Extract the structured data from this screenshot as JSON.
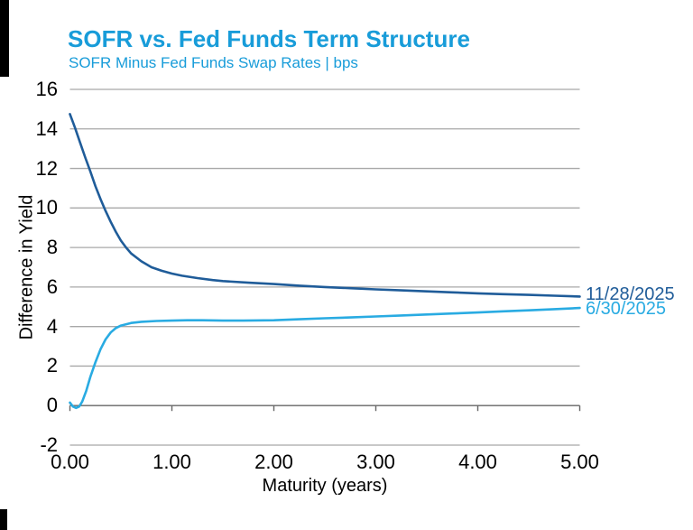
{
  "page": {
    "title": "SOFR vs. Fed Funds Term Structure",
    "subtitle": "SOFR Minus Fed Funds Swap Rates | bps",
    "title_color": "#189CD9"
  },
  "chart_data": {
    "type": "line",
    "title": "SOFR vs. Fed Funds Term Structure",
    "subtitle": "SOFR Minus Fed Funds Swap Rates | bps",
    "xlabel": "Maturity (years)",
    "ylabel": "Difference in Yield",
    "xlim": [
      0,
      5
    ],
    "ylim": [
      -2,
      16
    ],
    "x_ticks": [
      "0.00",
      "1.00",
      "2.00",
      "3.00",
      "4.00",
      "5.00"
    ],
    "x_tick_values": [
      0,
      1,
      2,
      3,
      4,
      5
    ],
    "y_ticks": [
      "16",
      "14",
      "12",
      "10",
      "8",
      "6",
      "4",
      "2",
      "0",
      "-2"
    ],
    "y_tick_values": [
      16,
      14,
      12,
      10,
      8,
      6,
      4,
      2,
      0,
      -2
    ],
    "grid": "horizontal",
    "gridline_color": "#A8A8A8",
    "axis_line_color": "#666666",
    "legend_position": "right-end-labels",
    "series": [
      {
        "name": "11/28/2025",
        "color": "#1F5C99",
        "points": [
          [
            0,
            14.75
          ],
          [
            0.05,
            14.05
          ],
          [
            0.1,
            13.3
          ],
          [
            0.15,
            12.55
          ],
          [
            0.2,
            11.85
          ],
          [
            0.25,
            11.1
          ],
          [
            0.3,
            10.45
          ],
          [
            0.35,
            9.85
          ],
          [
            0.4,
            9.3
          ],
          [
            0.45,
            8.8
          ],
          [
            0.5,
            8.35
          ],
          [
            0.55,
            8.0
          ],
          [
            0.6,
            7.7
          ],
          [
            0.7,
            7.3
          ],
          [
            0.8,
            7.0
          ],
          [
            0.9,
            6.82
          ],
          [
            1.0,
            6.68
          ],
          [
            1.1,
            6.57
          ],
          [
            1.25,
            6.45
          ],
          [
            1.4,
            6.35
          ],
          [
            1.5,
            6.3
          ],
          [
            1.75,
            6.22
          ],
          [
            2.0,
            6.15
          ],
          [
            2.25,
            6.07
          ],
          [
            2.5,
            6.0
          ],
          [
            2.75,
            5.94
          ],
          [
            3.0,
            5.88
          ],
          [
            3.25,
            5.83
          ],
          [
            3.5,
            5.78
          ],
          [
            3.75,
            5.73
          ],
          [
            4.0,
            5.68
          ],
          [
            4.25,
            5.64
          ],
          [
            4.5,
            5.6
          ],
          [
            4.75,
            5.56
          ],
          [
            5.0,
            5.52
          ]
        ]
      },
      {
        "name": "6/30/2025",
        "color": "#29ABE2",
        "points": [
          [
            0,
            0.15
          ],
          [
            0.03,
            -0.05
          ],
          [
            0.06,
            -0.12
          ],
          [
            0.09,
            -0.05
          ],
          [
            0.12,
            0.2
          ],
          [
            0.16,
            0.75
          ],
          [
            0.2,
            1.45
          ],
          [
            0.25,
            2.2
          ],
          [
            0.3,
            2.85
          ],
          [
            0.35,
            3.35
          ],
          [
            0.4,
            3.7
          ],
          [
            0.45,
            3.92
          ],
          [
            0.5,
            4.05
          ],
          [
            0.6,
            4.18
          ],
          [
            0.7,
            4.24
          ],
          [
            0.85,
            4.28
          ],
          [
            1.0,
            4.3
          ],
          [
            1.15,
            4.32
          ],
          [
            1.3,
            4.32
          ],
          [
            1.5,
            4.3
          ],
          [
            1.7,
            4.3
          ],
          [
            2.0,
            4.32
          ],
          [
            2.25,
            4.37
          ],
          [
            2.5,
            4.42
          ],
          [
            2.75,
            4.46
          ],
          [
            3.0,
            4.51
          ],
          [
            3.25,
            4.56
          ],
          [
            3.5,
            4.61
          ],
          [
            3.75,
            4.66
          ],
          [
            4.0,
            4.71
          ],
          [
            4.25,
            4.77
          ],
          [
            4.5,
            4.82
          ],
          [
            4.75,
            4.88
          ],
          [
            5.0,
            4.94
          ]
        ]
      }
    ]
  }
}
